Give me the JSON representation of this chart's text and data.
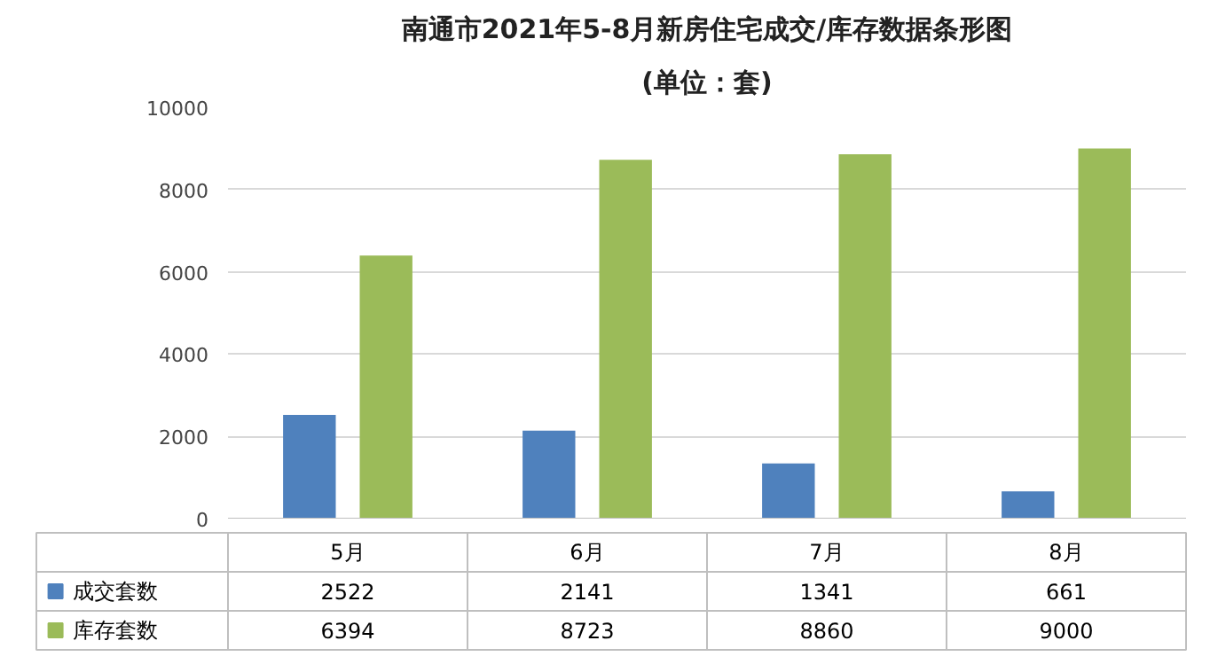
{
  "chart_data": {
    "type": "bar",
    "title": "南通市2021年5-8月新房住宅成交/库存数据条形图",
    "subtitle": "(单位：套)",
    "categories": [
      "5月",
      "6月",
      "7月",
      "8月"
    ],
    "series": [
      {
        "name": "成交套数",
        "color": "#4f81bd",
        "values": [
          2522,
          2141,
          1341,
          661
        ]
      },
      {
        "name": "库存套数",
        "color": "#9bbb59",
        "values": [
          6394,
          8723,
          8860,
          9000
        ]
      }
    ],
    "ylim": [
      0,
      10000
    ],
    "yticks": [
      0,
      2000,
      4000,
      6000,
      8000,
      10000
    ],
    "grid": "y",
    "legend": "bottom",
    "data_labels": true
  }
}
